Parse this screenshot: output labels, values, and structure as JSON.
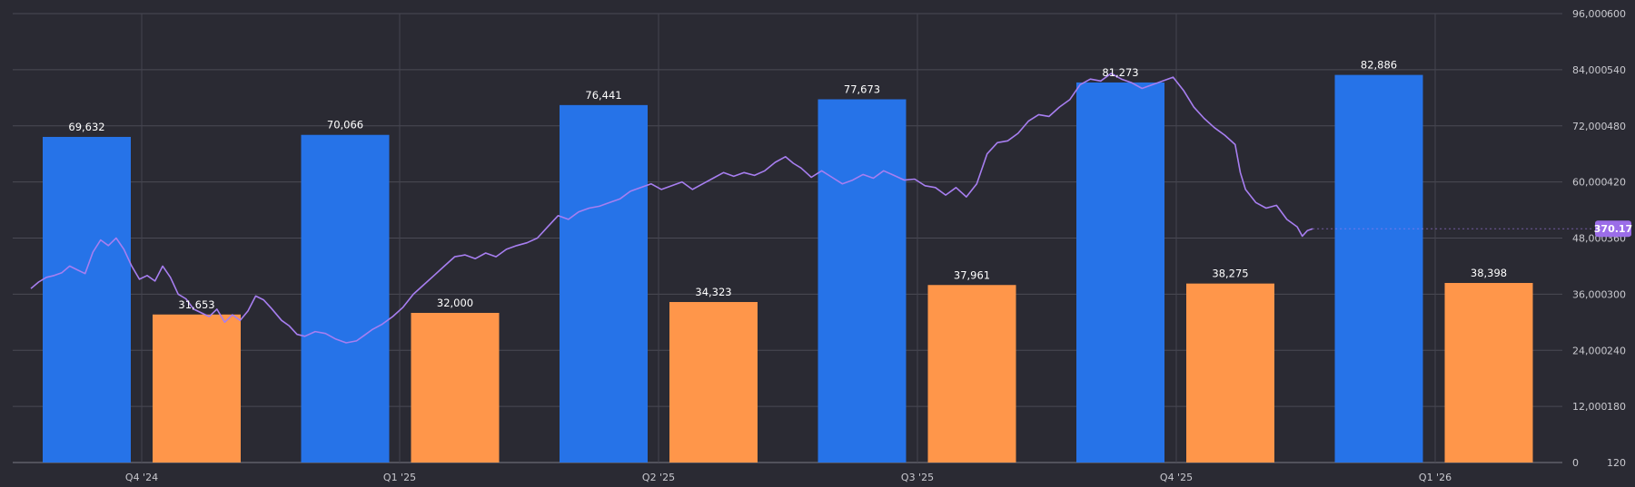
{
  "chart_data": {
    "type": "bar",
    "categories": [
      "Q4 '24",
      "Q1 '25",
      "Q2 '25",
      "Q3 '25",
      "Q4 '25",
      "Q1 '26"
    ],
    "series": [
      {
        "values": [
          69632,
          70066,
          76441,
          77673,
          81273,
          82886
        ],
        "color": "#2673e8",
        "axis": "left"
      },
      {
        "values": [
          31653,
          32000,
          34323,
          37961,
          38275,
          38398
        ],
        "color": "#ff964a",
        "axis": "left"
      }
    ],
    "data_labels": {
      "s0": [
        "69,632",
        "70,066",
        "76,441",
        "77,673",
        "81,273",
        "82,886"
      ],
      "s1": [
        "31,653",
        "32,000",
        "34,323",
        "37,961",
        "38,275",
        "38,398"
      ]
    },
    "x_tick_labels": [
      "Q4 '24",
      "Q1 '25",
      "Q2 '25",
      "Q3 '25",
      "Q4 '25",
      "Q1 '26"
    ],
    "left_axis": {
      "ylim": [
        0,
        96000
      ],
      "ticks": [
        0,
        12000,
        24000,
        36000,
        48000,
        60000,
        72000,
        84000,
        96000
      ],
      "tick_labels": [
        "0",
        "12,000",
        "24,000",
        "36,000",
        "48,000",
        "60,000",
        "72,000",
        "84,000",
        "96,000"
      ]
    },
    "right_axis": {
      "ylim": [
        120,
        600
      ],
      "ticks": [
        120,
        180,
        240,
        300,
        360,
        420,
        480,
        540,
        600
      ],
      "tick_labels": [
        "120",
        "180",
        "240",
        "300",
        "360",
        "420",
        "480",
        "540",
        "600"
      ]
    },
    "price_line": {
      "color": "#a77ef0",
      "axis": "right",
      "points": [
        [
          0,
          306
        ],
        [
          0.03,
          313
        ],
        [
          0.06,
          318
        ],
        [
          0.09,
          320
        ],
        [
          0.12,
          323
        ],
        [
          0.15,
          330
        ],
        [
          0.18,
          326
        ],
        [
          0.21,
          322
        ],
        [
          0.24,
          345
        ],
        [
          0.27,
          358
        ],
        [
          0.3,
          352
        ],
        [
          0.33,
          360
        ],
        [
          0.36,
          348
        ],
        [
          0.39,
          330
        ],
        [
          0.42,
          316
        ],
        [
          0.45,
          320
        ],
        [
          0.48,
          314
        ],
        [
          0.51,
          330
        ],
        [
          0.54,
          318
        ],
        [
          0.57,
          300
        ],
        [
          0.6,
          295
        ],
        [
          0.63,
          284
        ],
        [
          0.66,
          280
        ],
        [
          0.69,
          276
        ],
        [
          0.72,
          284
        ],
        [
          0.75,
          270
        ],
        [
          0.78,
          278
        ],
        [
          0.81,
          272
        ],
        [
          0.84,
          282
        ],
        [
          0.87,
          298
        ],
        [
          0.9,
          294
        ],
        [
          0.93,
          285
        ],
        [
          0.97,
          272
        ],
        [
          1.0,
          266
        ],
        [
          1.03,
          257
        ],
        [
          1.06,
          255
        ],
        [
          1.1,
          260
        ],
        [
          1.14,
          258
        ],
        [
          1.18,
          252
        ],
        [
          1.22,
          248
        ],
        [
          1.26,
          250
        ],
        [
          1.29,
          256
        ],
        [
          1.32,
          262
        ],
        [
          1.36,
          268
        ],
        [
          1.4,
          276
        ],
        [
          1.44,
          286
        ],
        [
          1.48,
          300
        ],
        [
          1.52,
          310
        ],
        [
          1.56,
          320
        ],
        [
          1.6,
          330
        ],
        [
          1.64,
          340
        ],
        [
          1.68,
          342
        ],
        [
          1.72,
          338
        ],
        [
          1.76,
          344
        ],
        [
          1.8,
          340
        ],
        [
          1.84,
          348
        ],
        [
          1.88,
          352
        ],
        [
          1.92,
          355
        ],
        [
          1.96,
          360
        ],
        [
          2.0,
          372
        ],
        [
          2.04,
          384
        ],
        [
          2.08,
          380
        ],
        [
          2.12,
          388
        ],
        [
          2.16,
          392
        ],
        [
          2.2,
          394
        ],
        [
          2.24,
          398
        ],
        [
          2.28,
          402
        ],
        [
          2.32,
          410
        ],
        [
          2.36,
          414
        ],
        [
          2.4,
          418
        ],
        [
          2.44,
          412
        ],
        [
          2.48,
          416
        ],
        [
          2.52,
          420
        ],
        [
          2.56,
          412
        ],
        [
          2.6,
          418
        ],
        [
          2.64,
          424
        ],
        [
          2.68,
          430
        ],
        [
          2.72,
          426
        ],
        [
          2.76,
          430
        ],
        [
          2.8,
          427
        ],
        [
          2.84,
          432
        ],
        [
          2.88,
          441
        ],
        [
          2.92,
          447
        ],
        [
          2.95,
          440
        ],
        [
          2.98,
          435
        ],
        [
          3.02,
          425
        ],
        [
          3.06,
          432
        ],
        [
          3.1,
          425
        ],
        [
          3.14,
          418
        ],
        [
          3.18,
          422
        ],
        [
          3.22,
          428
        ],
        [
          3.26,
          424
        ],
        [
          3.3,
          432
        ],
        [
          3.34,
          427
        ],
        [
          3.38,
          422
        ],
        [
          3.42,
          423
        ],
        [
          3.46,
          416
        ],
        [
          3.5,
          414
        ],
        [
          3.54,
          406
        ],
        [
          3.58,
          414
        ],
        [
          3.62,
          404
        ],
        [
          3.66,
          418
        ],
        [
          3.7,
          450
        ],
        [
          3.74,
          462
        ],
        [
          3.78,
          464
        ],
        [
          3.82,
          472
        ],
        [
          3.86,
          485
        ],
        [
          3.9,
          492
        ],
        [
          3.94,
          490
        ],
        [
          3.98,
          500
        ],
        [
          4.02,
          508
        ],
        [
          4.06,
          524
        ],
        [
          4.1,
          530
        ],
        [
          4.14,
          528
        ],
        [
          4.18,
          536
        ],
        [
          4.22,
          530
        ],
        [
          4.26,
          526
        ],
        [
          4.3,
          520
        ],
        [
          4.34,
          524
        ],
        [
          4.38,
          528
        ],
        [
          4.42,
          532
        ],
        [
          4.46,
          518
        ],
        [
          4.5,
          500
        ],
        [
          4.54,
          488
        ],
        [
          4.58,
          478
        ],
        [
          4.62,
          470
        ],
        [
          4.66,
          460
        ],
        [
          4.68,
          430
        ],
        [
          4.7,
          412
        ],
        [
          4.74,
          398
        ],
        [
          4.78,
          392
        ],
        [
          4.82,
          395
        ],
        [
          4.86,
          380
        ],
        [
          4.9,
          372
        ],
        [
          4.92,
          362
        ],
        [
          4.94,
          368
        ],
        [
          4.96,
          370
        ]
      ]
    },
    "last_value_badge": "370.17",
    "grid": true,
    "legend": "none"
  }
}
